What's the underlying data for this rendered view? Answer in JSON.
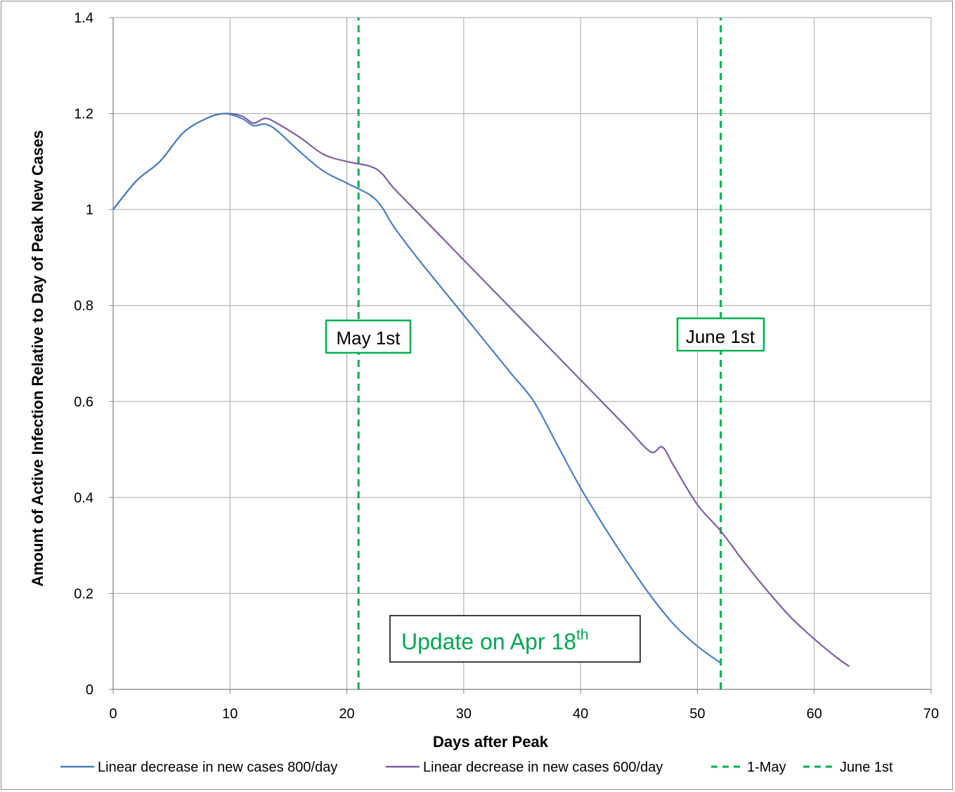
{
  "chart_data": {
    "type": "line",
    "xlabel": "Days after Peak",
    "ylabel": "Amount of Active Infection Relative to Day of Peak New Cases",
    "xlim": [
      0,
      70
    ],
    "ylim": [
      0,
      1.4
    ],
    "x_ticks": [
      "0",
      "10",
      "20",
      "30",
      "40",
      "50",
      "60",
      "70"
    ],
    "y_ticks": [
      "0",
      "0.2",
      "0.4",
      "0.6",
      "0.8",
      "1",
      "1.2",
      "1.4"
    ],
    "grid": true,
    "legend_position": "bottom",
    "series": [
      {
        "name": "Linear decrease in new cases 800/day",
        "color": "#4a7ebb",
        "style": "solid",
        "x": [
          0,
          2,
          4,
          6,
          8,
          9.5,
          11,
          12,
          13,
          14,
          16,
          18,
          20,
          22,
          23,
          24,
          26,
          28,
          30,
          32,
          34,
          36,
          38,
          40,
          42,
          44,
          46,
          48,
          50,
          52
        ],
        "y": [
          1.0,
          1.06,
          1.1,
          1.16,
          1.19,
          1.2,
          1.19,
          1.175,
          1.178,
          1.165,
          1.12,
          1.08,
          1.055,
          1.03,
          1.005,
          0.965,
          0.9,
          0.84,
          0.78,
          0.72,
          0.66,
          0.6,
          0.51,
          0.42,
          0.34,
          0.265,
          0.195,
          0.135,
          0.09,
          0.055
        ]
      },
      {
        "name": "Linear decrease in new cases 600/day",
        "color": "#7e5ea2",
        "style": "solid",
        "x": [
          0,
          2,
          4,
          6,
          8,
          9.5,
          11,
          12,
          13,
          14,
          16,
          18,
          20,
          22,
          23,
          24,
          26,
          28,
          30,
          32,
          34,
          36,
          38,
          40,
          42,
          44,
          46,
          47,
          48,
          50,
          52,
          54,
          56,
          58,
          60,
          62,
          63
        ],
        "y": [
          1.0,
          1.06,
          1.1,
          1.16,
          1.19,
          1.2,
          1.195,
          1.18,
          1.19,
          1.18,
          1.15,
          1.115,
          1.1,
          1.09,
          1.075,
          1.045,
          0.995,
          0.945,
          0.895,
          0.845,
          0.795,
          0.745,
          0.695,
          0.645,
          0.595,
          0.545,
          0.495,
          0.505,
          0.465,
          0.385,
          0.33,
          0.265,
          0.205,
          0.15,
          0.105,
          0.065,
          0.048
        ]
      },
      {
        "name": "1-May",
        "color": "#00b050",
        "style": "dashed",
        "x": [
          21,
          21
        ],
        "y": [
          0,
          1.4
        ]
      },
      {
        "name": "June 1st",
        "color": "#00b050",
        "style": "dashed",
        "x": [
          52,
          52
        ],
        "y": [
          0,
          1.4
        ]
      }
    ],
    "annotations": [
      {
        "text": "May 1st",
        "border": "#00b050"
      },
      {
        "text": "June 1st",
        "border": "#00b050"
      },
      {
        "text": "Update on Apr 18",
        "superscript": "th",
        "color": "#00a651",
        "border": "#000000"
      }
    ]
  }
}
